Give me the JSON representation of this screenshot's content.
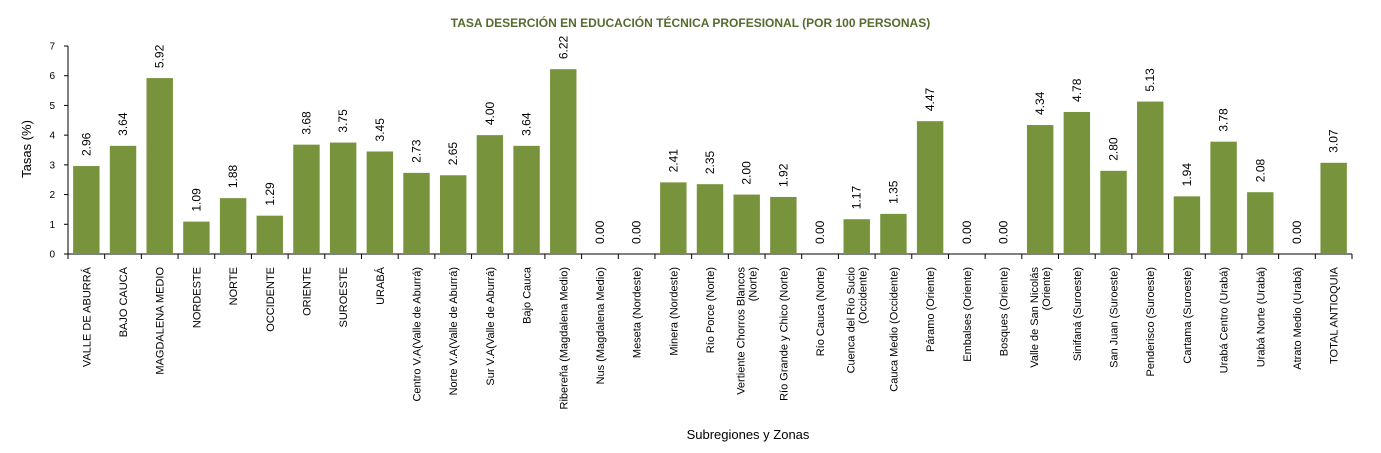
{
  "chart_data": {
    "type": "bar",
    "title": "TASA DESERCIÓN EN EDUCACIÓN TÉCNICA PROFESIONAL (POR 100 PERSONAS)",
    "xlabel": "Subregiones y Zonas",
    "ylabel": "Tasas (%)",
    "ylim": [
      0,
      7
    ],
    "yticks": [
      "0",
      "1",
      "2",
      "3",
      "4",
      "5",
      "6",
      "7"
    ],
    "grid": false,
    "bar_color": "#77933C",
    "title_color": "#556B2F",
    "categories": [
      [
        "VALLE DE ABURRÁ"
      ],
      [
        "BAJO CAUCA"
      ],
      [
        "MAGDALENA MEDIO"
      ],
      [
        "NORDESTE"
      ],
      [
        "NORTE"
      ],
      [
        "OCCIDENTE"
      ],
      [
        "ORIENTE"
      ],
      [
        "SUROESTE"
      ],
      [
        "URABÁ"
      ],
      [
        "Centro V.A(Valle de Aburrá)"
      ],
      [
        "Norte V.A(Valle de Aburrá)"
      ],
      [
        "Sur V.A(Valle de Aburrá)"
      ],
      [
        "Bajo Cauca"
      ],
      [
        "Ribereña  (Magdalena Medio)"
      ],
      [
        "Nus  (Magdalena Medio)"
      ],
      [
        "Meseta  (Nordeste)"
      ],
      [
        "Minera  (Nordeste)"
      ],
      [
        "Río Porce   (Norte)"
      ],
      [
        "Vertiente Chorros Blancos",
        "(Norte)"
      ],
      [
        "Río Grande y Chico  (Norte)"
      ],
      [
        "Río Cauca  (Norte)"
      ],
      [
        "Cuenca del Río Sucio",
        "(Occidente)"
      ],
      [
        "Cauca Medio  (Occidente)"
      ],
      [
        "Páramo   (Oriente)"
      ],
      [
        "Embalses  (Oriente)"
      ],
      [
        "Bosques  (Oriente)"
      ],
      [
        "Valle de San Nicolás",
        "(Oriente)"
      ],
      [
        "Sinifaná  (Suroeste)"
      ],
      [
        "San Juan  (Suroeste)"
      ],
      [
        "Penderisco  (Suroeste)"
      ],
      [
        "Cartama   (Suroeste)"
      ],
      [
        "Urabá Centro  (Urabá)"
      ],
      [
        "Urabá Norte  (Urabá)"
      ],
      [
        "Atrato Medio  (Urabá)"
      ],
      [
        "TOTAL ANTIOQUIA"
      ]
    ],
    "values": [
      2.96,
      3.64,
      5.92,
      1.09,
      1.88,
      1.29,
      3.68,
      3.75,
      3.45,
      2.73,
      2.65,
      4.0,
      3.64,
      6.22,
      0.0,
      0.0,
      2.41,
      2.35,
      2.0,
      1.92,
      0.0,
      1.17,
      1.35,
      4.47,
      0.0,
      0.0,
      4.34,
      4.78,
      2.8,
      5.13,
      1.94,
      3.78,
      2.08,
      0.0,
      3.07
    ],
    "value_labels": [
      "2.96",
      "3.64",
      "5.92",
      "1.09",
      "1.88",
      "1.29",
      "3.68",
      "3.75",
      "3.45",
      "2.73",
      "2.65",
      "4.00",
      "3.64",
      "6.22",
      "0.00",
      "0.00",
      "2.41",
      "2.35",
      "2.00",
      "1.92",
      "0.00",
      "1.17",
      "1.35",
      "4.47",
      "0.00",
      "0.00",
      "4.34",
      "4.78",
      "2.80",
      "5.13",
      "1.94",
      "3.78",
      "2.08",
      "0.00",
      "3.07"
    ]
  }
}
